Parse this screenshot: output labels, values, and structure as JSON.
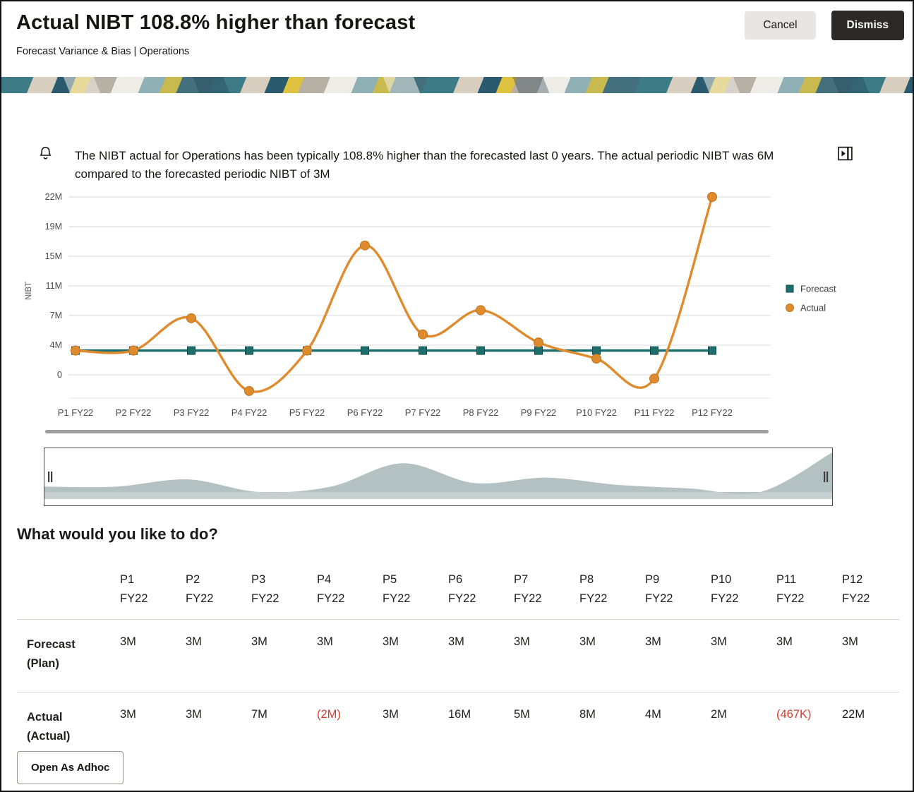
{
  "header": {
    "title": "Actual NIBT 108.8% higher than forecast",
    "subtitle": "Forecast Variance & Bias | Operations",
    "cancel_label": "Cancel",
    "dismiss_label": "Dismiss"
  },
  "insight": {
    "text": "The NIBT actual for Operations has been typically 108.8% higher than the forecasted last 0 years. The actual periodic NIBT was 6M compared to the forecasted periodic NIBT of 3M"
  },
  "chart_data": {
    "type": "line",
    "title": "",
    "xlabel": "",
    "ylabel": "NIBT",
    "categories": [
      "P1 FY22",
      "P2 FY22",
      "P3 FY22",
      "P4 FY22",
      "P5 FY22",
      "P6 FY22",
      "P7 FY22",
      "P8 FY22",
      "P9 FY22",
      "P10 FY22",
      "P11 FY22",
      "P12 FY22"
    ],
    "y_ticks": [
      {
        "label": "22M",
        "value": 22
      },
      {
        "label": "19M",
        "value": 19
      },
      {
        "label": "15M",
        "value": 15
      },
      {
        "label": "11M",
        "value": 11
      },
      {
        "label": "7M",
        "value": 7
      },
      {
        "label": "4M",
        "value": 4
      },
      {
        "label": "0",
        "value": 0
      }
    ],
    "ylim": [
      -4,
      24
    ],
    "grid": "horizontal",
    "legend_position": "right",
    "series": [
      {
        "name": "Forecast",
        "marker": "square",
        "color": "#1f6e6e",
        "marker_stroke": "#0d4c4e",
        "values": [
          3,
          3,
          3,
          3,
          3,
          3,
          3,
          3,
          3,
          3,
          3,
          3
        ]
      },
      {
        "name": "Actual",
        "marker": "circle",
        "color": "#e08a2e",
        "marker_stroke": "#bd7420",
        "values": [
          3,
          3,
          7,
          -2,
          3,
          16,
          5,
          8,
          4,
          2,
          -0.467,
          22
        ]
      }
    ]
  },
  "section": {
    "question": "What would you like to do?"
  },
  "table": {
    "columns": [
      {
        "period": "P1",
        "year": "FY22"
      },
      {
        "period": "P2",
        "year": "FY22"
      },
      {
        "period": "P3",
        "year": "FY22"
      },
      {
        "period": "P4",
        "year": "FY22"
      },
      {
        "period": "P5",
        "year": "FY22"
      },
      {
        "period": "P6",
        "year": "FY22"
      },
      {
        "period": "P7",
        "year": "FY22"
      },
      {
        "period": "P8",
        "year": "FY22"
      },
      {
        "period": "P9",
        "year": "FY22"
      },
      {
        "period": "P10",
        "year": "FY22"
      },
      {
        "period": "P11",
        "year": "FY22"
      },
      {
        "period": "P12",
        "year": "FY22"
      }
    ],
    "rows": [
      {
        "label": "Forecast",
        "sublabel": "(Plan)",
        "values": [
          "3M",
          "3M",
          "3M",
          "3M",
          "3M",
          "3M",
          "3M",
          "3M",
          "3M",
          "3M",
          "3M",
          "3M"
        ]
      },
      {
        "label": "Actual",
        "sublabel": "(Actual)",
        "values": [
          "3M",
          "3M",
          "7M",
          "(2M)",
          "3M",
          "16M",
          "5M",
          "8M",
          "4M",
          "2M",
          "(467K)",
          "22M"
        ]
      }
    ]
  },
  "actions": {
    "open_adhoc_label": "Open As Adhoc"
  },
  "colors": {
    "accent_orange": "#e08a2e",
    "accent_teal": "#1f6e6e",
    "negative": "#d9392d",
    "gridline": "#d8d8d8",
    "scrollbar": "#9e9e9e",
    "overview_area": "#b4c1c2",
    "overview_band": "#c6d0d1",
    "banner_palette": [
      "#3d7b87",
      "#d7cec0",
      "#2a5a6d",
      "#dfc240",
      "#b6b0a5",
      "#edece6",
      "#8fb0b4"
    ]
  }
}
